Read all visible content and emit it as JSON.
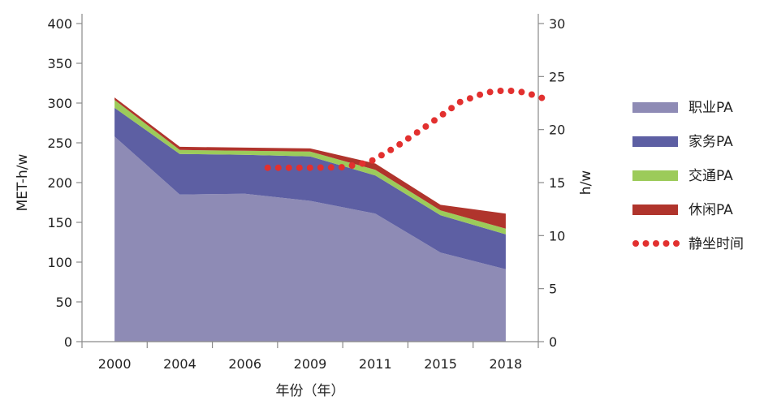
{
  "chart_data": {
    "type": "area",
    "stacked": true,
    "categories": [
      "2000",
      "2004",
      "2006",
      "2009",
      "2011",
      "2015",
      "2018"
    ],
    "xlabel": "年份（年）",
    "ylabel": "MET-h/w",
    "ylim": [
      0,
      400
    ],
    "yticks": [
      0,
      50,
      100,
      150,
      200,
      250,
      300,
      350,
      400
    ],
    "y2label": "h/w",
    "y2lim": [
      0,
      30
    ],
    "y2ticks": [
      0,
      5,
      10,
      15,
      20,
      25,
      30
    ],
    "series": [
      {
        "name": "职业PA",
        "values": [
          258,
          185,
          186,
          177,
          161,
          112,
          91
        ]
      },
      {
        "name": "家务PA",
        "values": [
          36,
          51,
          49,
          56,
          48,
          47,
          44
        ]
      },
      {
        "name": "交通PA",
        "values": [
          10,
          5,
          5,
          6,
          7,
          6,
          7
        ]
      },
      {
        "name": "休闲PA",
        "values": [
          3,
          4,
          4,
          4,
          8,
          7,
          19
        ]
      }
    ],
    "secondary_series": {
      "name": "静坐时间",
      "axis": "right",
      "x_start": 2.35,
      "x_end": 6.6,
      "points": [
        [
          2.35,
          16.4
        ],
        [
          3.0,
          16.4
        ],
        [
          3.5,
          16.45
        ],
        [
          3.9,
          16.9
        ],
        [
          4.3,
          18.3
        ],
        [
          4.8,
          20.4
        ],
        [
          5.3,
          22.6
        ],
        [
          5.7,
          23.5
        ],
        [
          6.0,
          23.7
        ],
        [
          6.3,
          23.5
        ],
        [
          6.6,
          22.9
        ]
      ]
    },
    "colors": {
      "职业PA": "#8e8bb5",
      "家务PA": "#5d5fa3",
      "交通PA": "#9ccb5a",
      "休闲PA": "#b0342c",
      "静坐时间": "#e2302f"
    },
    "legend_position": "right"
  }
}
